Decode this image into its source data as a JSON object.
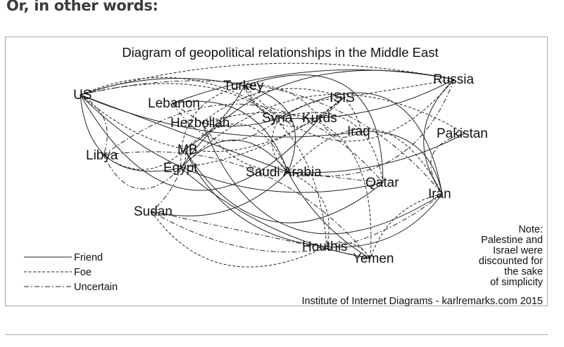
{
  "heading": "Or, in other words:",
  "diagram": {
    "title": "Diagram of geopolitical relationships in the Middle East",
    "nodes": [
      "US",
      "Turkey",
      "Russia",
      "Lebanon",
      "ISIS",
      "Syria",
      "Kurds",
      "Hezbollah",
      "Iraq",
      "Pakistan",
      "Libya",
      "MB",
      "Egypt",
      "Saudi Arabia",
      "Qatar",
      "Iran",
      "Sudan",
      "Houthis",
      "Yemen"
    ],
    "legend": [
      {
        "type": "friend",
        "label": "Friend"
      },
      {
        "type": "foe",
        "label": "Foe"
      },
      {
        "type": "uncertain",
        "label": "Uncertain"
      }
    ],
    "note": [
      "Note:",
      "Palestine and",
      "Israel were",
      "discounted for",
      "the sake",
      "of simplicity"
    ],
    "credit": "Institute of Internet Diagrams - karlremarks.com 2015",
    "edges": [
      [
        "US",
        "Russia",
        "foe"
      ],
      [
        "US",
        "Turkey",
        "friend"
      ],
      [
        "US",
        "ISIS",
        "foe"
      ],
      [
        "US",
        "Iran",
        "uncertain"
      ],
      [
        "US",
        "Saudi Arabia",
        "friend"
      ],
      [
        "US",
        "Egypt",
        "friend"
      ],
      [
        "US",
        "Libya",
        "uncertain"
      ],
      [
        "US",
        "Iraq",
        "friend"
      ],
      [
        "US",
        "Kurds",
        "friend"
      ],
      [
        "US",
        "Syria",
        "foe"
      ],
      [
        "US",
        "Qatar",
        "friend"
      ],
      [
        "US",
        "Houthis",
        "foe"
      ],
      [
        "Russia",
        "Syria",
        "friend"
      ],
      [
        "Russia",
        "Iran",
        "friend"
      ],
      [
        "Russia",
        "Turkey",
        "foe"
      ],
      [
        "Russia",
        "ISIS",
        "foe"
      ],
      [
        "Russia",
        "Egypt",
        "friend"
      ],
      [
        "Russia",
        "Saudi Arabia",
        "uncertain"
      ],
      [
        "Russia",
        "Lebanon",
        "friend"
      ],
      [
        "Turkey",
        "ISIS",
        "uncertain"
      ],
      [
        "Turkey",
        "Kurds",
        "foe"
      ],
      [
        "Turkey",
        "Syria",
        "foe"
      ],
      [
        "Turkey",
        "Qatar",
        "friend"
      ],
      [
        "Turkey",
        "MB",
        "friend"
      ],
      [
        "Turkey",
        "Egypt",
        "foe"
      ],
      [
        "Turkey",
        "Saudi Arabia",
        "friend"
      ],
      [
        "Lebanon",
        "Hezbollah",
        "uncertain"
      ],
      [
        "Lebanon",
        "Syria",
        "uncertain"
      ],
      [
        "Lebanon",
        "Saudi Arabia",
        "friend"
      ],
      [
        "Hezbollah",
        "Syria",
        "friend"
      ],
      [
        "Hezbollah",
        "Iran",
        "friend"
      ],
      [
        "Hezbollah",
        "ISIS",
        "foe"
      ],
      [
        "Hezbollah",
        "Saudi Arabia",
        "foe"
      ],
      [
        "Syria",
        "Iran",
        "friend"
      ],
      [
        "Syria",
        "ISIS",
        "foe"
      ],
      [
        "Syria",
        "Saudi Arabia",
        "foe"
      ],
      [
        "Syria",
        "Qatar",
        "foe"
      ],
      [
        "Kurds",
        "ISIS",
        "foe"
      ],
      [
        "Kurds",
        "Iraq",
        "uncertain"
      ],
      [
        "Iraq",
        "Iran",
        "friend"
      ],
      [
        "Iraq",
        "ISIS",
        "foe"
      ],
      [
        "Iran",
        "Saudi Arabia",
        "foe"
      ],
      [
        "Iran",
        "Houthis",
        "friend"
      ],
      [
        "Iran",
        "Yemen",
        "foe"
      ],
      [
        "Iran",
        "Pakistan",
        "uncertain"
      ],
      [
        "Pakistan",
        "Saudi Arabia",
        "friend"
      ],
      [
        "Pakistan",
        "Egypt",
        "foe"
      ],
      [
        "Qatar",
        "MB",
        "friend"
      ],
      [
        "Qatar",
        "Saudi Arabia",
        "uncertain"
      ],
      [
        "Saudi Arabia",
        "Egypt",
        "friend"
      ],
      [
        "Saudi Arabia",
        "Houthis",
        "foe"
      ],
      [
        "Saudi Arabia",
        "Yemen",
        "friend"
      ],
      [
        "Saudi Arabia",
        "MB",
        "foe"
      ],
      [
        "Saudi Arabia",
        "Sudan",
        "friend"
      ],
      [
        "Egypt",
        "MB",
        "foe"
      ],
      [
        "Egypt",
        "Libya",
        "uncertain"
      ],
      [
        "Egypt",
        "Sudan",
        "uncertain"
      ],
      [
        "Libya",
        "MB",
        "foe"
      ],
      [
        "Libya",
        "Qatar",
        "uncertain"
      ],
      [
        "Sudan",
        "Yemen",
        "uncertain"
      ],
      [
        "Sudan",
        "Iran",
        "uncertain"
      ],
      [
        "Houthis",
        "Yemen",
        "foe"
      ],
      [
        "Egypt",
        "Yemen",
        "friend"
      ],
      [
        "Sudan",
        "Houthis",
        "foe"
      ],
      [
        "Libya",
        "Yemen",
        "uncertain"
      ],
      [
        "MB",
        "Houthis",
        "friend"
      ],
      [
        "Hezbollah",
        "Yemen",
        "foe"
      ],
      [
        "ISIS",
        "Egypt",
        "foe"
      ]
    ]
  }
}
